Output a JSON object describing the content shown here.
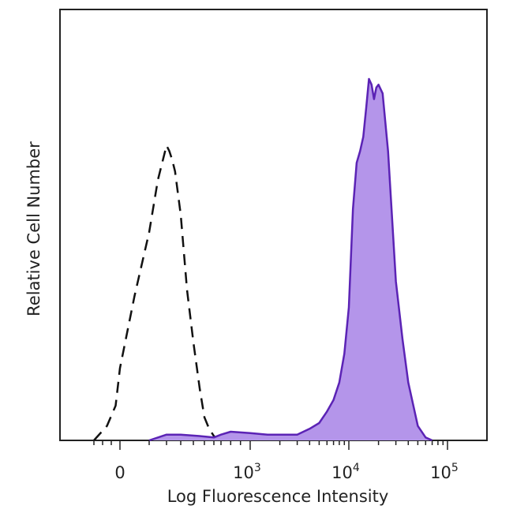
{
  "chart_data": {
    "type": "area",
    "xlabel": "Log Fluorescence Intensity",
    "ylabel": "Relative Cell Number",
    "x_scale": "biexponential",
    "xlim": [
      -400,
      150000
    ],
    "ylim": [
      0,
      1.2
    ],
    "grid": false,
    "legend": "none",
    "x_ticks": [
      {
        "value": 0,
        "base": "0",
        "exp": ""
      },
      {
        "value": 1000,
        "base": "10",
        "exp": "3"
      },
      {
        "value": 10000,
        "base": "10",
        "exp": "4"
      },
      {
        "value": 100000,
        "base": "10",
        "exp": "5"
      }
    ],
    "series": [
      {
        "style": "dashed-outline",
        "color": "#111111",
        "x": [
          -300,
          -150,
          -50,
          0,
          50,
          100,
          150,
          200,
          220,
          240,
          260,
          300,
          350,
          400,
          450,
          500,
          550,
          600,
          650,
          700
        ],
        "y": [
          0.0,
          0.05,
          0.12,
          0.25,
          0.5,
          0.72,
          0.9,
          1.02,
          1.0,
          0.97,
          0.93,
          0.78,
          0.52,
          0.34,
          0.18,
          0.08,
          0.04,
          0.015,
          0.005,
          0.0
        ]
      },
      {
        "style": "filled",
        "color": "#5b23b5",
        "fill": "#b495ea",
        "x": [
          100,
          200,
          300,
          450,
          600,
          700,
          800,
          1000,
          1500,
          2000,
          3000,
          4000,
          5000,
          6000,
          7000,
          8000,
          9000,
          10000,
          11000,
          12000,
          13000,
          14000,
          15000,
          16000,
          17000,
          18000,
          19000,
          20000,
          22000,
          25000,
          30000,
          35000,
          40000,
          50000,
          60000,
          70000
        ],
        "y": [
          0.0,
          0.02,
          0.02,
          0.015,
          0.01,
          0.02,
          0.03,
          0.025,
          0.02,
          0.02,
          0.02,
          0.04,
          0.06,
          0.1,
          0.14,
          0.2,
          0.3,
          0.46,
          0.8,
          0.96,
          1.0,
          1.05,
          1.15,
          1.25,
          1.23,
          1.18,
          1.22,
          1.23,
          1.2,
          1.0,
          0.55,
          0.35,
          0.2,
          0.05,
          0.01,
          0.0
        ]
      }
    ]
  }
}
